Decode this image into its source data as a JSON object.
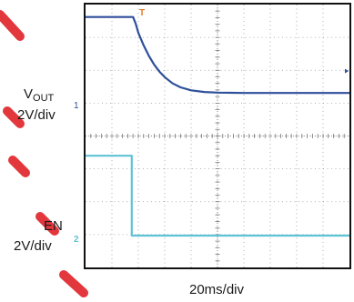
{
  "chart_data": {
    "type": "line",
    "title": "",
    "xlabel": "20ms/div",
    "grid": true,
    "divisions": {
      "x": 10,
      "y": 8
    },
    "xlim": [
      0,
      10
    ],
    "ylim": [
      0,
      8
    ],
    "channel_markers": [
      "1",
      "2"
    ],
    "trigger_marker": "T",
    "series": [
      {
        "name": "VOUT",
        "label_main": "V",
        "label_sub": "OUT",
        "scale": "2V/div",
        "color": "#2e4f9a",
        "x": [
          0,
          1.8,
          1.9,
          2.0,
          2.2,
          2.4,
          2.6,
          2.8,
          3.0,
          3.3,
          3.6,
          4.0,
          4.5,
          5.0,
          6.0,
          7.0,
          8.0,
          9.0,
          10.0
        ],
        "y": [
          7.62,
          7.62,
          7.42,
          7.14,
          6.76,
          6.44,
          6.17,
          5.96,
          5.79,
          5.6,
          5.48,
          5.39,
          5.34,
          5.32,
          5.31,
          5.31,
          5.31,
          5.31,
          5.31
        ]
      },
      {
        "name": "EN",
        "label_main": "EN",
        "label_sub": "",
        "scale": "2V/div",
        "color": "#5fc3d6",
        "x": [
          0,
          1.75,
          1.75,
          10.0
        ],
        "y": [
          3.4,
          3.4,
          0.97,
          0.97
        ]
      }
    ]
  }
}
